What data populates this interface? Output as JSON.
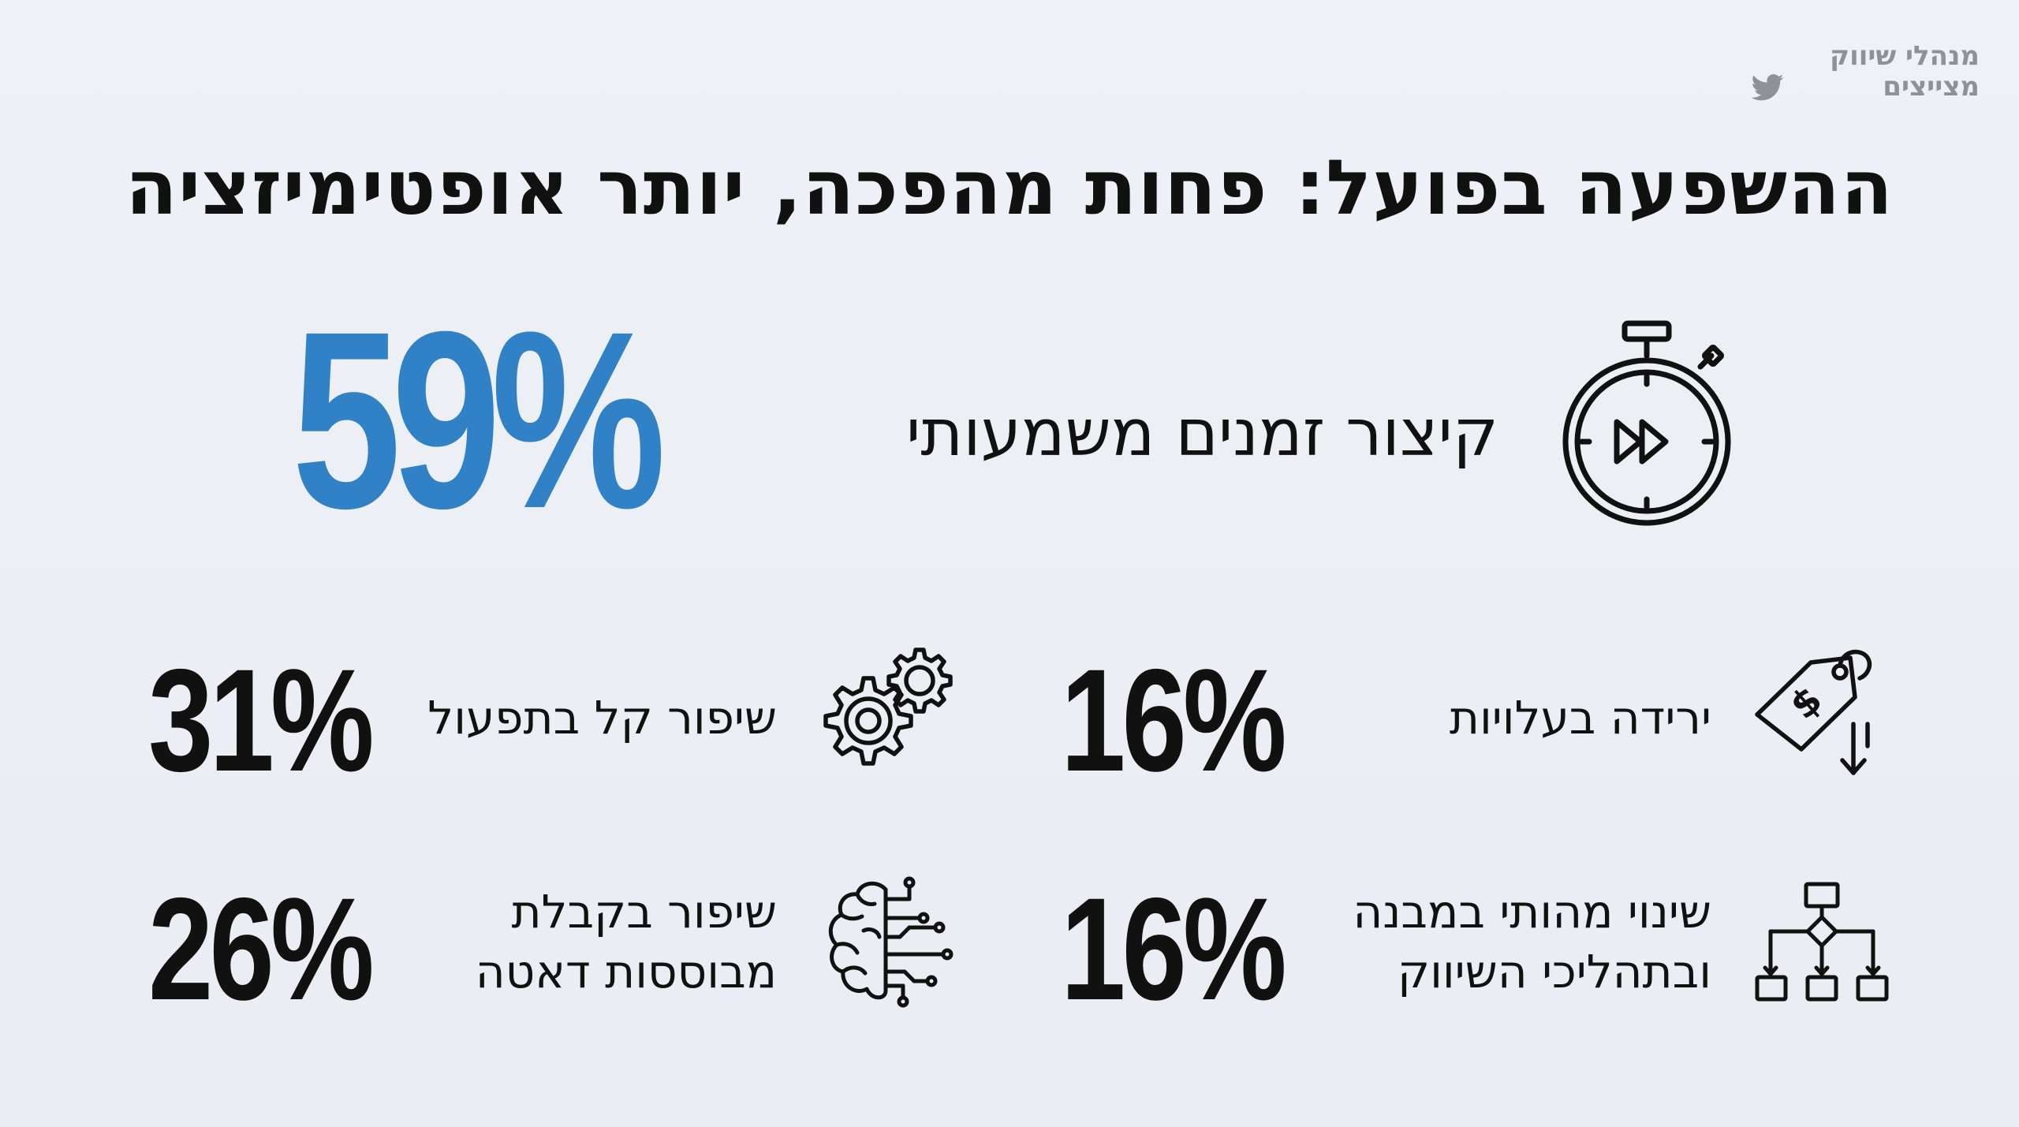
{
  "brand": {
    "line1": "מנהלי שיווק",
    "line2": "מצייצים",
    "icon": "twitter-icon"
  },
  "title": "ההשפעה בפועל: פחות מהפכה, יותר אופטימיזציה",
  "highlight": {
    "value": "59%",
    "label": "קיצור זמנים משמעותי",
    "icon": "stopwatch-fast-forward-icon",
    "color": "#3181c7"
  },
  "stats": [
    {
      "value": "16%",
      "label_lines": [
        "ירידה בעלויות"
      ],
      "icon": "price-tag-down-arrow-icon"
    },
    {
      "value": "31%",
      "label_lines": [
        "שיפור קל בתפעול"
      ],
      "icon": "gears-icon"
    },
    {
      "value": "16%",
      "label_lines": [
        "שינוי מהותי במבנה",
        "ובתהליכי השיווק"
      ],
      "icon": "flowchart-icon"
    },
    {
      "value": "26%",
      "label_lines": [
        "שיפור בקבלת",
        "מבוססות דאטה"
      ],
      "icon": "brain-circuit-icon"
    }
  ],
  "colors": {
    "background": "#eceff4",
    "text": "#111111",
    "accent": "#3181c7",
    "brand": "#8e9297"
  }
}
